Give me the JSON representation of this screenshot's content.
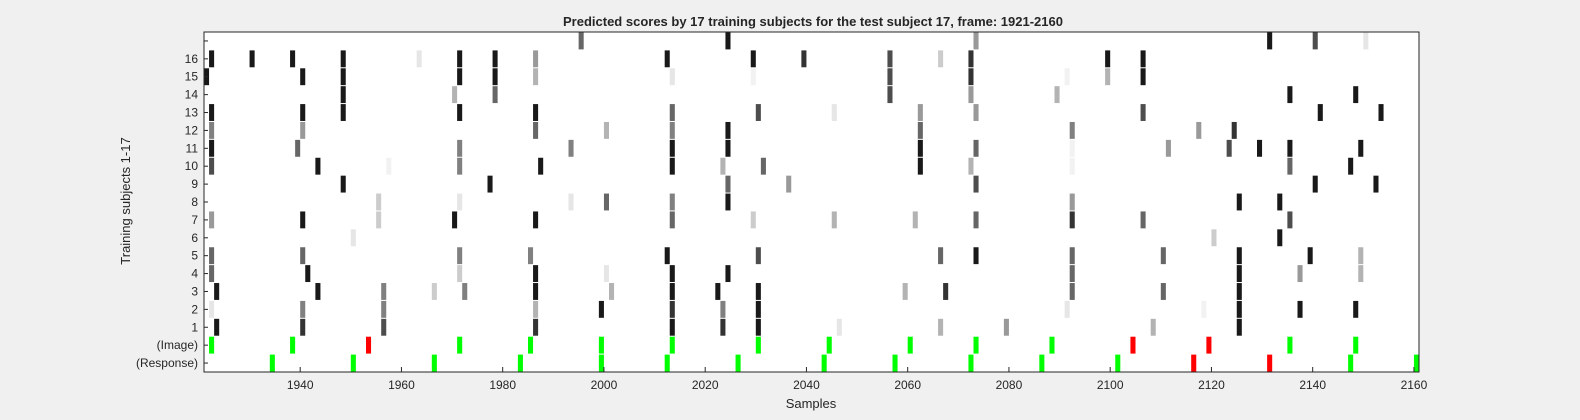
{
  "chart_data": {
    "type": "heatmap",
    "title": "Predicted scores by 17 training subjects for the test subject 17, frame: 1921-2160",
    "xlabel": "Samples",
    "ylabel": "Training subjects 1-17",
    "xlim": [
      1921,
      2161
    ],
    "x_ticks": [
      1940,
      1960,
      1980,
      2000,
      2020,
      2040,
      2060,
      2080,
      2100,
      2120,
      2140,
      2160
    ],
    "y_tick_labels": [
      "(Response)",
      "(Image)",
      "1",
      "2",
      "3",
      "4",
      "5",
      "6",
      "7",
      "8",
      "9",
      "10",
      "11",
      "12",
      "13",
      "14",
      "15",
      "16",
      ""
    ],
    "colors": {
      "background": "#ffffff",
      "score_high": "#000000",
      "correct": "#00ff00",
      "incorrect": "#ff0000"
    },
    "score_rows": [
      {
        "subject": 1,
        "cells": [
          [
            1923,
            0.9
          ],
          [
            1940,
            0.8
          ],
          [
            1956,
            0.7
          ],
          [
            1986,
            0.8
          ],
          [
            2013,
            0.9
          ],
          [
            2023,
            0.8
          ],
          [
            2030,
            0.9
          ],
          [
            2046,
            0.1
          ],
          [
            2066,
            0.3
          ],
          [
            2079,
            0.4
          ],
          [
            2108,
            0.3
          ],
          [
            2125,
            0.9
          ]
        ]
      },
      {
        "subject": 2,
        "cells": [
          [
            1922,
            0.1
          ],
          [
            1940,
            0.5
          ],
          [
            1956,
            0.5
          ],
          [
            1986,
            0.3
          ],
          [
            1999,
            0.9
          ],
          [
            2013,
            0.8
          ],
          [
            2023,
            0.5
          ],
          [
            2030,
            0.9
          ],
          [
            2091,
            0.1
          ],
          [
            2118,
            0.05
          ],
          [
            2125,
            0.9
          ],
          [
            2137,
            0.9
          ],
          [
            2148,
            0.9
          ]
        ]
      },
      {
        "subject": 3,
        "cells": [
          [
            1923,
            0.9
          ],
          [
            1943,
            0.9
          ],
          [
            1956,
            0.5
          ],
          [
            1966,
            0.2
          ],
          [
            1972,
            0.5
          ],
          [
            1986,
            0.9
          ],
          [
            2001,
            0.3
          ],
          [
            2013,
            0.9
          ],
          [
            2022,
            0.9
          ],
          [
            2030,
            0.9
          ],
          [
            2059,
            0.3
          ],
          [
            2067,
            0.8
          ],
          [
            2092,
            0.6
          ],
          [
            2110,
            0.6
          ],
          [
            2125,
            0.9
          ]
        ]
      },
      {
        "subject": 4,
        "cells": [
          [
            1922,
            0.6
          ],
          [
            1941,
            0.9
          ],
          [
            1971,
            0.2
          ],
          [
            1986,
            0.9
          ],
          [
            2000,
            0.1
          ],
          [
            2013,
            0.9
          ],
          [
            2024,
            0.9
          ],
          [
            2092,
            0.6
          ],
          [
            2125,
            0.9
          ],
          [
            2137,
            0.4
          ],
          [
            2149,
            0.3
          ]
        ]
      },
      {
        "subject": 5,
        "cells": [
          [
            1922,
            0.6
          ],
          [
            1940,
            0.6
          ],
          [
            1971,
            0.5
          ],
          [
            1985,
            0.5
          ],
          [
            2012,
            0.9
          ],
          [
            2030,
            0.7
          ],
          [
            2066,
            0.6
          ],
          [
            2073,
            0.9
          ],
          [
            2092,
            0.6
          ],
          [
            2110,
            0.6
          ],
          [
            2125,
            0.9
          ],
          [
            2139,
            0.9
          ],
          [
            2149,
            0.3
          ]
        ]
      },
      {
        "subject": 6,
        "cells": [
          [
            1950,
            0.1
          ],
          [
            2120,
            0.2
          ],
          [
            2133,
            0.9
          ]
        ]
      },
      {
        "subject": 7,
        "cells": [
          [
            1922,
            0.4
          ],
          [
            1940,
            0.9
          ],
          [
            1955,
            0.2
          ],
          [
            1970,
            0.9
          ],
          [
            1986,
            0.9
          ],
          [
            2013,
            0.6
          ],
          [
            2029,
            0.2
          ],
          [
            2045,
            0.3
          ],
          [
            2061,
            0.3
          ],
          [
            2073,
            0.6
          ],
          [
            2092,
            0.8
          ],
          [
            2106,
            0.6
          ],
          [
            2135,
            0.7
          ]
        ]
      },
      {
        "subject": 8,
        "cells": [
          [
            1955,
            0.2
          ],
          [
            1971,
            0.1
          ],
          [
            1993,
            0.1
          ],
          [
            2000,
            0.6
          ],
          [
            2013,
            0.5
          ],
          [
            2024,
            0.9
          ],
          [
            2092,
            0.4
          ],
          [
            2125,
            0.9
          ],
          [
            2133,
            0.9
          ]
        ]
      },
      {
        "subject": 9,
        "cells": [
          [
            1948,
            0.9
          ],
          [
            1977,
            0.9
          ],
          [
            2024,
            0.6
          ],
          [
            2036,
            0.4
          ],
          [
            2073,
            0.7
          ],
          [
            2140,
            0.9
          ],
          [
            2152,
            0.9
          ]
        ]
      },
      {
        "subject": 10,
        "cells": [
          [
            1922,
            0.7
          ],
          [
            1943,
            0.9
          ],
          [
            1957,
            0.05
          ],
          [
            1971,
            0.5
          ],
          [
            1987,
            0.9
          ],
          [
            2013,
            0.9
          ],
          [
            2023,
            0.3
          ],
          [
            2031,
            0.6
          ],
          [
            2062,
            0.9
          ],
          [
            2072,
            0.3
          ],
          [
            2092,
            0.05
          ],
          [
            2135,
            0.6
          ],
          [
            2147,
            0.9
          ]
        ]
      },
      {
        "subject": 11,
        "cells": [
          [
            1922,
            0.9
          ],
          [
            1939,
            0.6
          ],
          [
            1971,
            0.5
          ],
          [
            1993,
            0.5
          ],
          [
            2013,
            0.9
          ],
          [
            2024,
            0.9
          ],
          [
            2062,
            0.9
          ],
          [
            2073,
            0.6
          ],
          [
            2092,
            0.05
          ],
          [
            2111,
            0.4
          ],
          [
            2123,
            0.7
          ],
          [
            2129,
            0.9
          ],
          [
            2135,
            0.9
          ],
          [
            2149,
            0.9
          ]
        ]
      },
      {
        "subject": 12,
        "cells": [
          [
            1922,
            0.5
          ],
          [
            1940,
            0.4
          ],
          [
            1986,
            0.6
          ],
          [
            2000,
            0.3
          ],
          [
            2013,
            0.5
          ],
          [
            2024,
            0.9
          ],
          [
            2062,
            0.6
          ],
          [
            2092,
            0.5
          ],
          [
            2117,
            0.4
          ],
          [
            2124,
            0.8
          ]
        ]
      },
      {
        "subject": 13,
        "cells": [
          [
            1922,
            0.9
          ],
          [
            1940,
            0.9
          ],
          [
            1948,
            0.9
          ],
          [
            1971,
            0.9
          ],
          [
            1986,
            0.9
          ],
          [
            2013,
            0.6
          ],
          [
            2030,
            0.7
          ],
          [
            2045,
            0.1
          ],
          [
            2062,
            0.4
          ],
          [
            2073,
            0.4
          ],
          [
            2106,
            0.7
          ],
          [
            2141,
            0.9
          ],
          [
            2153,
            0.9
          ]
        ]
      },
      {
        "subject": 14,
        "cells": [
          [
            1948,
            0.9
          ],
          [
            1970,
            0.3
          ],
          [
            1978,
            0.6
          ],
          [
            2056,
            0.7
          ],
          [
            2072,
            0.4
          ],
          [
            2089,
            0.3
          ],
          [
            2135,
            0.9
          ],
          [
            2148,
            0.9
          ]
        ]
      },
      {
        "subject": 15,
        "cells": [
          [
            1921,
            0.9
          ],
          [
            1940,
            0.9
          ],
          [
            1948,
            0.9
          ],
          [
            1971,
            0.9
          ],
          [
            1978,
            0.9
          ],
          [
            1986,
            0.3
          ],
          [
            2013,
            0.1
          ],
          [
            2029,
            0.05
          ],
          [
            2056,
            0.7
          ],
          [
            2072,
            0.8
          ],
          [
            2091,
            0.05
          ],
          [
            2099,
            0.3
          ],
          [
            2106,
            0.9
          ]
        ]
      },
      {
        "subject": 16,
        "cells": [
          [
            1922,
            0.9
          ],
          [
            1930,
            0.9
          ],
          [
            1938,
            0.9
          ],
          [
            1948,
            0.9
          ],
          [
            1963,
            0.1
          ],
          [
            1971,
            0.9
          ],
          [
            1978,
            0.9
          ],
          [
            1986,
            0.4
          ],
          [
            2012,
            0.9
          ],
          [
            2029,
            0.9
          ],
          [
            2039,
            0.8
          ],
          [
            2056,
            0.7
          ],
          [
            2066,
            0.2
          ],
          [
            2072,
            0.8
          ],
          [
            2099,
            0.9
          ],
          [
            2106,
            0.9
          ]
        ]
      },
      {
        "subject": 17,
        "cells": [
          [
            1995,
            0.6
          ],
          [
            2024,
            0.9
          ],
          [
            2073,
            0.4
          ],
          [
            2131,
            0.9
          ],
          [
            2140,
            0.7
          ],
          [
            2150,
            0.1
          ]
        ]
      }
    ],
    "image_events": [
      {
        "x": 1922,
        "correct": true
      },
      {
        "x": 1938,
        "correct": true
      },
      {
        "x": 1953,
        "correct": false
      },
      {
        "x": 1971,
        "correct": true
      },
      {
        "x": 1985,
        "correct": true
      },
      {
        "x": 1999,
        "correct": true
      },
      {
        "x": 2013,
        "correct": true
      },
      {
        "x": 2030,
        "correct": true
      },
      {
        "x": 2044,
        "correct": true
      },
      {
        "x": 2060,
        "correct": true
      },
      {
        "x": 2073,
        "correct": true
      },
      {
        "x": 2088,
        "correct": true
      },
      {
        "x": 2104,
        "correct": false
      },
      {
        "x": 2119,
        "correct": false
      },
      {
        "x": 2135,
        "correct": true
      },
      {
        "x": 2148,
        "correct": true
      }
    ],
    "response_events": [
      {
        "x": 1934,
        "correct": true
      },
      {
        "x": 1950,
        "correct": true
      },
      {
        "x": 1966,
        "correct": true
      },
      {
        "x": 1983,
        "correct": true
      },
      {
        "x": 1999,
        "correct": true
      },
      {
        "x": 2012,
        "correct": true
      },
      {
        "x": 2026,
        "correct": true
      },
      {
        "x": 2043,
        "correct": true
      },
      {
        "x": 2057,
        "correct": true
      },
      {
        "x": 2072,
        "correct": true
      },
      {
        "x": 2086,
        "correct": true
      },
      {
        "x": 2101,
        "correct": true
      },
      {
        "x": 2116,
        "correct": false
      },
      {
        "x": 2131,
        "correct": false
      },
      {
        "x": 2147,
        "correct": true
      },
      {
        "x": 2160,
        "correct": true
      }
    ]
  }
}
